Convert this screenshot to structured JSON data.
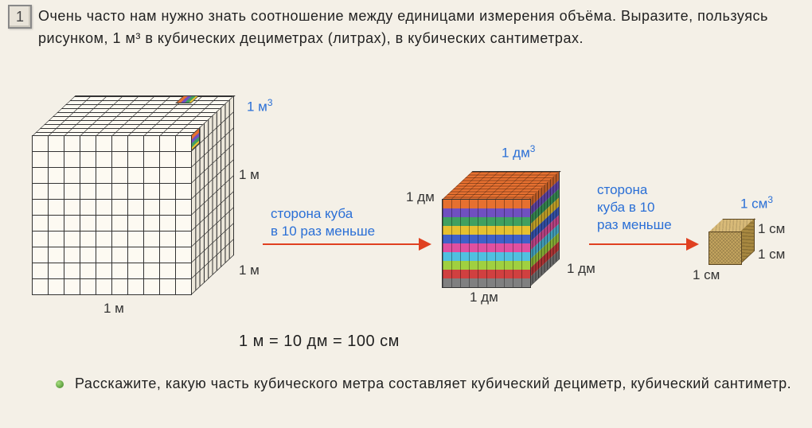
{
  "task_number": "1",
  "intro_text": "Очень часто нам нужно знать соотношение между единицами измерения объёма. Выразите, пользуясь рисунком, 1 м³ в кубических дециметрах (литрах), в кубических сантиметрах.",
  "big_cube": {
    "volume_label": "1 м",
    "volume_sup": "3",
    "side_label": "1 м",
    "stripe_colors": [
      "#e67030",
      "#7050c0",
      "#40a060",
      "#e6c030",
      "#4060c8",
      "#e050a0",
      "#50c0e0",
      "#a0d040",
      "#d04040",
      "#808080"
    ]
  },
  "mid_cube": {
    "volume_label": "1 дм",
    "volume_sup": "3",
    "side_label": "1 дм",
    "layer_colors": [
      "#e67030",
      "#7050c0",
      "#40a060",
      "#e6c030",
      "#4060c8",
      "#e050a0",
      "#50c0e0",
      "#a0d040",
      "#d04040",
      "#808080"
    ]
  },
  "sm_cube": {
    "volume_label": "1 см",
    "volume_sup": "3",
    "side_label": "1 см",
    "fill_color": "#c7a760"
  },
  "arrow1_text": "сторона куба\nв 10 раз меньше",
  "arrow2_text_l1": "сторона",
  "arrow2_text_l2": "куба в 10",
  "arrow2_text_l3": "раз меньше",
  "arrow_color": "#e04020",
  "blue_color": "#2a6fd6",
  "equation": "1 м = 10 дм = 100 см",
  "bullet_text": "Расскажите, какую часть кубического метра составляет кубический дециметр, кубический сантиметр.",
  "bg_color": "#f4f0e7"
}
